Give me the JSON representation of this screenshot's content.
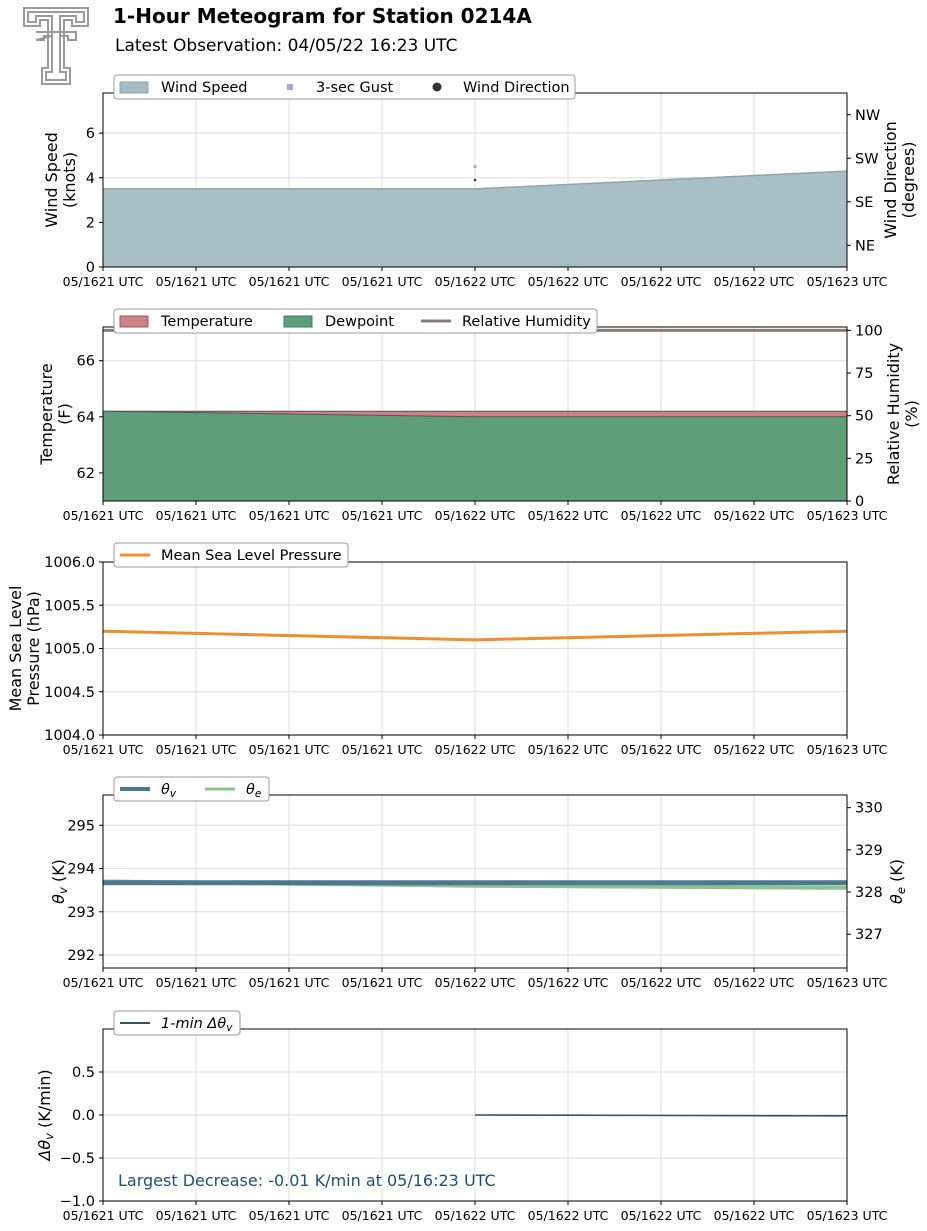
{
  "header": {
    "title": "1-Hour Meteogram for Station 0214A",
    "subtitle": "Latest Observation: 04/05/22 16:23 UTC",
    "logo_icon": "double-t-logo-icon"
  },
  "colors": {
    "wind_fill": "#a3bdc2",
    "wind_line": "#8aa6ab",
    "gust": "#a8a8c4",
    "direction": "#333333",
    "temperature": "#cd8386",
    "dewpoint": "#5e9e7a",
    "rh": "#8c7b7b",
    "mslp": "#ec8f33",
    "theta_v": "#4a7890",
    "theta_e": "#8fc08f",
    "dtheta": "#2f5468",
    "annotation": "#1f5070",
    "grid": "#e2e2e2"
  },
  "chart_data": [
    {
      "type": "area",
      "id": "wind",
      "x": [
        "05/1621 UTC",
        "05/1621 UTC",
        "05/1621 UTC",
        "05/1621 UTC",
        "05/1622 UTC",
        "05/1622 UTC",
        "05/1622 UTC",
        "05/1622 UTC",
        "05/1623 UTC"
      ],
      "ylabel": "Wind Speed\n(knots)",
      "ylabel2": "Wind Direction\n(degrees)",
      "ylim": [
        0,
        7.8
      ],
      "yticks": [
        0,
        2,
        4,
        6
      ],
      "y2lim": [
        0,
        360
      ],
      "y2ticks": [
        {
          "value": 45,
          "label": "NE"
        },
        {
          "value": 135,
          "label": "SE"
        },
        {
          "value": 225,
          "label": "SW"
        },
        {
          "value": 315,
          "label": "NW"
        }
      ],
      "legend": [
        "Wind Speed",
        "3-sec Gust",
        "Wind Direction"
      ],
      "series": [
        {
          "name": "Wind Speed",
          "x": [
            0,
            4,
            8
          ],
          "values": [
            3.5,
            3.5,
            4.3
          ]
        },
        {
          "name": "3-sec Gust",
          "x": [
            4
          ],
          "values": [
            4.5
          ]
        },
        {
          "name": "Wind Direction",
          "x": [
            4
          ],
          "values": [
            180
          ]
        }
      ],
      "grid": true,
      "legend_position": "top-left"
    },
    {
      "type": "area",
      "id": "temp",
      "x": [
        "05/1621 UTC",
        "05/1621 UTC",
        "05/1621 UTC",
        "05/1621 UTC",
        "05/1622 UTC",
        "05/1622 UTC",
        "05/1622 UTC",
        "05/1622 UTC",
        "05/1623 UTC"
      ],
      "ylabel": "Temperature\n(F)",
      "ylabel2": "Relative Humidity\n(%)",
      "ylim": [
        61,
        67.2
      ],
      "yticks": [
        62,
        64,
        66
      ],
      "y2lim": [
        0,
        102
      ],
      "y2ticks": [
        0,
        25,
        50,
        75,
        100
      ],
      "legend": [
        "Temperature",
        "Dewpoint",
        "Relative Humidity"
      ],
      "series": [
        {
          "name": "Temperature",
          "x": [
            0,
            4,
            8
          ],
          "values": [
            64.2,
            64.2,
            64.2
          ]
        },
        {
          "name": "Dewpoint",
          "x": [
            0,
            4,
            8
          ],
          "values": [
            64.2,
            64.0,
            64.0
          ]
        },
        {
          "name": "Relative Humidity",
          "x": [
            0,
            8
          ],
          "values": [
            100,
            100
          ]
        }
      ],
      "grid": true,
      "legend_position": "top-left"
    },
    {
      "type": "line",
      "id": "pressure",
      "x": [
        "05/1621 UTC",
        "05/1621 UTC",
        "05/1621 UTC",
        "05/1621 UTC",
        "05/1622 UTC",
        "05/1622 UTC",
        "05/1622 UTC",
        "05/1622 UTC",
        "05/1623 UTC"
      ],
      "ylabel": "Mean Sea Level\nPressure (hPa)",
      "ylim": [
        1004.0,
        1006.0
      ],
      "yticks": [
        "1004.0",
        "1004.5",
        "1005.0",
        "1005.5",
        "1006.0"
      ],
      "legend": [
        "Mean Sea Level Pressure"
      ],
      "series": [
        {
          "name": "Mean Sea Level Pressure",
          "x": [
            0,
            4,
            8
          ],
          "values": [
            1005.2,
            1005.1,
            1005.2
          ]
        }
      ],
      "grid": true,
      "legend_position": "top-left"
    },
    {
      "type": "line",
      "id": "theta",
      "x": [
        "05/1621 UTC",
        "05/1621 UTC",
        "05/1621 UTC",
        "05/1621 UTC",
        "05/1622 UTC",
        "05/1622 UTC",
        "05/1622 UTC",
        "05/1622 UTC",
        "05/1623 UTC"
      ],
      "ylabel": "θv (K)",
      "ylabel2": "θe (K)",
      "ylim": [
        291.7,
        295.7
      ],
      "yticks": [
        292,
        293,
        294,
        295
      ],
      "y2lim": [
        326.2,
        330.3
      ],
      "y2ticks": [
        327,
        328,
        329,
        330
      ],
      "legend": [
        "θv",
        "θe"
      ],
      "series": [
        {
          "name": "θv",
          "axis": "left",
          "x": [
            0,
            2,
            4,
            8
          ],
          "values": [
            293.67,
            293.67,
            293.67,
            293.67
          ]
        },
        {
          "name": "θe",
          "axis": "right",
          "x": [
            0,
            2,
            4,
            8
          ],
          "values": [
            328.25,
            328.2,
            328.15,
            328.1
          ]
        }
      ],
      "grid": true,
      "legend_position": "top-left"
    },
    {
      "type": "line",
      "id": "dtheta",
      "x": [
        "05/1621 UTC",
        "05/1621 UTC",
        "05/1621 UTC",
        "05/1621 UTC",
        "05/1622 UTC",
        "05/1622 UTC",
        "05/1622 UTC",
        "05/1622 UTC",
        "05/1623 UTC"
      ],
      "ylabel": "Δθv (K/min)",
      "ylim": [
        -1.0,
        1.0
      ],
      "yticks": [
        "−1.0",
        "−0.5",
        "0.0",
        "0.5"
      ],
      "ytick_values": [
        -1.0,
        -0.5,
        0.0,
        0.5
      ],
      "legend": [
        "1-min Δθv"
      ],
      "series": [
        {
          "name": "1-min Δθv",
          "x": [
            4,
            8
          ],
          "values": [
            0.0,
            -0.01
          ]
        }
      ],
      "annotation": "Largest Decrease: -0.01 K/min at 05/16:23 UTC",
      "grid": true,
      "legend_position": "top-left"
    }
  ]
}
